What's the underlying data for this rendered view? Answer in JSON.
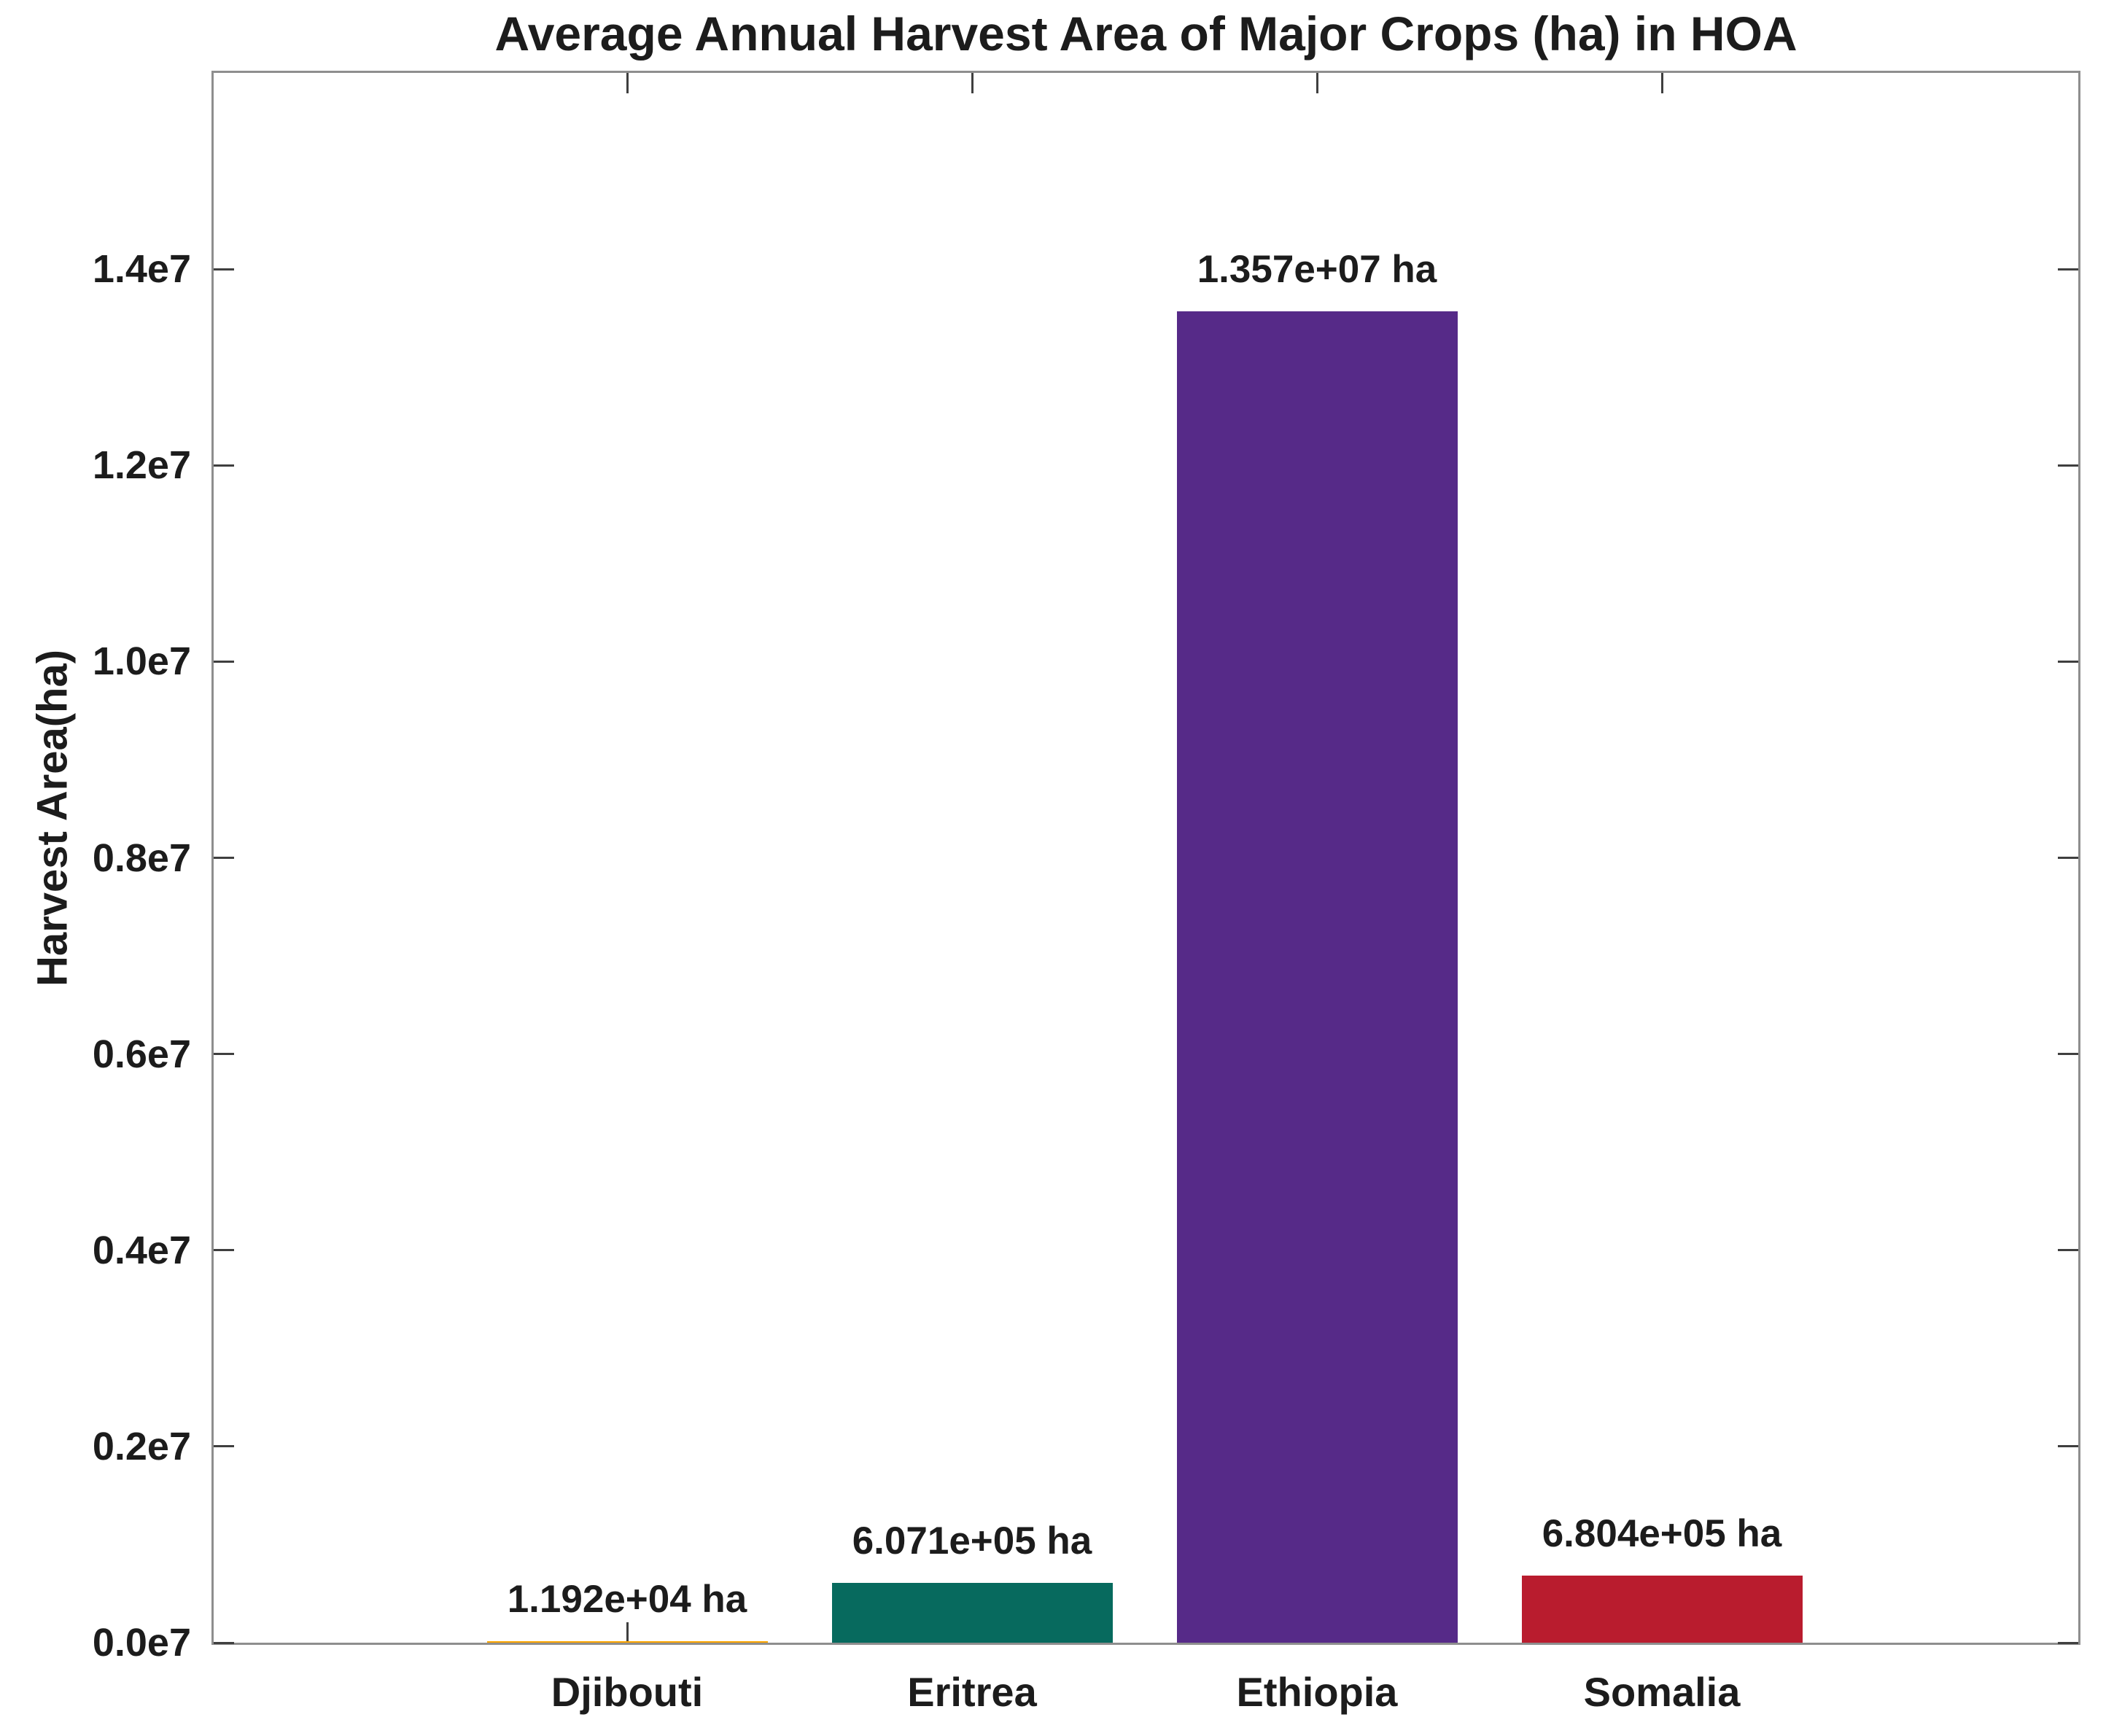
{
  "chart_data": {
    "type": "bar",
    "title": "Average Annual Harvest Area of Major Crops (ha) in HOA",
    "xlabel": "",
    "ylabel": "Harvest Area(ha)",
    "categories": [
      "Djibouti",
      "Eritrea",
      "Ethiopia",
      "Somalia"
    ],
    "values": [
      11920,
      607100,
      13570000,
      680400
    ],
    "bar_value_labels": [
      "1.192e+04 ha",
      "6.071e+05 ha",
      "1.357e+07 ha",
      "6.804e+05 ha"
    ],
    "bar_colors": [
      "#FFA500",
      "#076A5E",
      "#562A88",
      "#B91C2E"
    ],
    "ylim": [
      0,
      16000000
    ],
    "yticks": [
      0,
      2000000,
      4000000,
      6000000,
      8000000,
      10000000,
      12000000,
      14000000
    ],
    "ytick_labels": [
      "0.0e7",
      "0.2e7",
      "0.4e7",
      "0.6e7",
      "0.8e7",
      "1.0e7",
      "1.2e7",
      "1.4e7"
    ],
    "grid": false,
    "legend": "none",
    "box": "on"
  },
  "colors": {
    "background": "#ffffff",
    "spine": "#8e8e8e",
    "tick_mark": "#3f3f3f",
    "text": "#1c1c1c"
  }
}
